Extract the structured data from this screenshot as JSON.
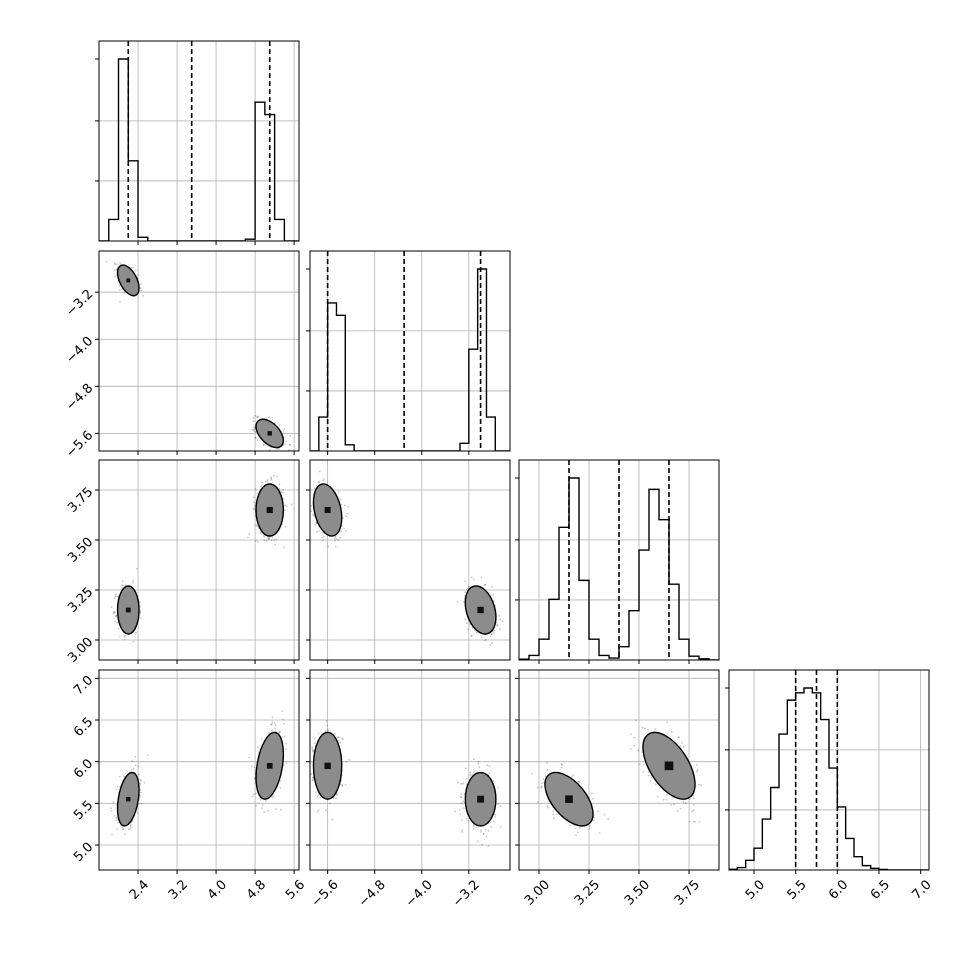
{
  "chart_data": {
    "type": "corner",
    "grid": true,
    "parameters": [
      {
        "range": [
          1.6,
          5.7
        ],
        "ticks": [
          "2.4",
          "3.2",
          "4.0",
          "4.8",
          "5.6"
        ],
        "tick_values": [
          2.4,
          3.2,
          4.0,
          4.8,
          5.6
        ],
        "quantiles": [
          2.2,
          3.5,
          5.1
        ],
        "histogram": {
          "bins": [
            1.6,
            1.8,
            2.0,
            2.2,
            2.4,
            2.6,
            2.8,
            3.0,
            3.2,
            3.4,
            3.6,
            3.8,
            4.0,
            4.2,
            4.4,
            4.6,
            4.8,
            5.0,
            5.2,
            5.4,
            5.6,
            5.8
          ],
          "counts": [
            0,
            70,
            590,
            260,
            12,
            0,
            0,
            0,
            0,
            0,
            0,
            0,
            0,
            0,
            0,
            6,
            450,
            410,
            70,
            0,
            0
          ]
        }
      },
      {
        "range": [
          -5.9,
          -2.5
        ],
        "ticks": [
          "-5.6",
          "-4.8",
          "-4.0",
          "-3.2"
        ],
        "tick_values": [
          -5.6,
          -4.8,
          -4.0,
          -3.2
        ],
        "quantiles": [
          -5.6,
          -4.3,
          -3.0
        ],
        "histogram": {
          "bins": [
            -5.9,
            -5.75,
            -5.6,
            -5.45,
            -5.3,
            -5.15,
            -5.0,
            -4.85,
            -4.7,
            -4.55,
            -4.4,
            -4.25,
            -4.1,
            -3.95,
            -3.8,
            -3.65,
            -3.5,
            -3.35,
            -3.2,
            -3.05,
            -2.9,
            -2.75,
            -2.6,
            -2.5
          ],
          "counts": [
            0,
            110,
            480,
            440,
            20,
            0,
            0,
            0,
            0,
            0,
            0,
            0,
            0,
            0,
            0,
            0,
            0,
            25,
            330,
            590,
            110,
            0,
            0
          ]
        }
      },
      {
        "range": [
          2.9,
          3.9
        ],
        "ticks": [
          "3.00",
          "3.25",
          "3.50",
          "3.75"
        ],
        "tick_values": [
          3.0,
          3.25,
          3.5,
          3.75
        ],
        "quantiles": [
          3.15,
          3.4,
          3.65
        ],
        "histogram": {
          "bins": [
            2.9,
            2.95,
            3.0,
            3.05,
            3.1,
            3.15,
            3.2,
            3.25,
            3.3,
            3.35,
            3.4,
            3.45,
            3.5,
            3.55,
            3.6,
            3.65,
            3.7,
            3.75,
            3.8,
            3.85,
            3.9
          ],
          "counts": [
            2,
            12,
            55,
            160,
            350,
            480,
            210,
            55,
            12,
            5,
            35,
            130,
            290,
            450,
            370,
            200,
            55,
            10,
            3,
            0
          ]
        }
      },
      {
        "range": [
          4.7,
          7.1
        ],
        "ticks": [
          "5.0",
          "5.5",
          "6.0",
          "6.5",
          "7.0"
        ],
        "tick_values": [
          5.0,
          5.5,
          6.0,
          6.5,
          7.0
        ],
        "quantiles": [
          5.5,
          5.75,
          6.0
        ],
        "histogram": {
          "bins": [
            4.7,
            4.8,
            4.9,
            5.0,
            5.1,
            5.2,
            5.3,
            5.4,
            5.5,
            5.6,
            5.7,
            5.8,
            5.9,
            6.0,
            6.1,
            6.2,
            6.3,
            6.4,
            6.5,
            6.6,
            6.7,
            6.8,
            6.9,
            7.0,
            7.1
          ],
          "counts": [
            3,
            10,
            40,
            90,
            210,
            340,
            560,
            700,
            730,
            750,
            730,
            620,
            420,
            260,
            130,
            55,
            18,
            7,
            2,
            0,
            0,
            0,
            0,
            0
          ]
        }
      }
    ],
    "modes": [
      {
        "mean": [
          2.2,
          -3.0,
          3.15,
          5.55
        ],
        "sd": [
          0.11,
          0.13,
          0.06,
          0.16
        ]
      },
      {
        "mean": [
          5.1,
          -5.6,
          3.65,
          5.95
        ],
        "sd": [
          0.14,
          0.12,
          0.065,
          0.2
        ]
      }
    ],
    "correlations": [
      {
        "pair": [
          0,
          1
        ],
        "r": -0.5
      },
      {
        "pair": [
          2,
          3
        ],
        "r": -0.55
      },
      {
        "pair": [
          0,
          3
        ],
        "r": 0.35
      },
      {
        "pair": [
          1,
          2
        ],
        "r": -0.3
      }
    ],
    "contour_levels": [
      0.5,
      1.0,
      1.5,
      2.0
    ]
  }
}
